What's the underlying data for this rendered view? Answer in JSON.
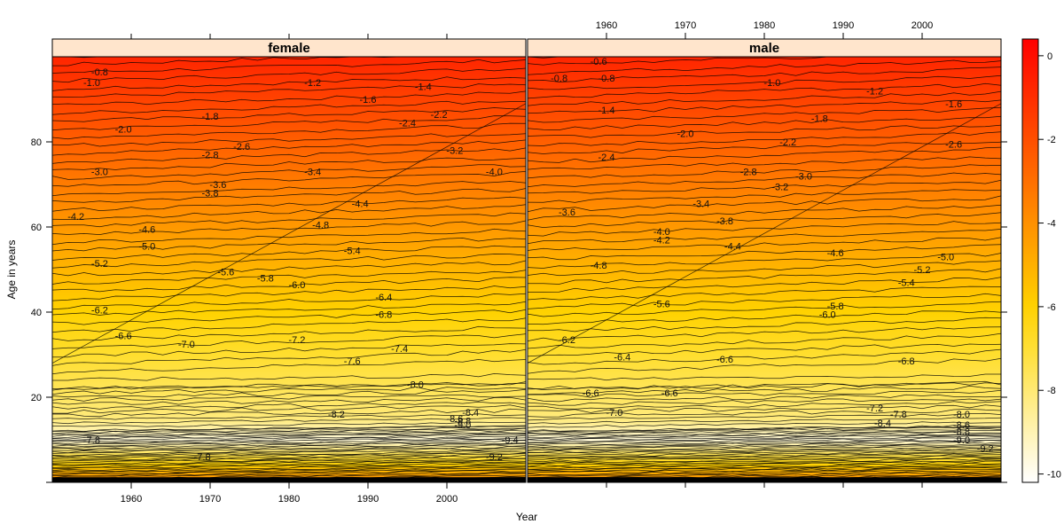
{
  "chart_data": {
    "type": "contour",
    "xlabel": "Year",
    "ylabel": "Age in years",
    "xlim": [
      1950,
      2010
    ],
    "ylim": [
      0,
      100
    ],
    "x_ticks": [
      1960,
      1970,
      1980,
      1990,
      2000
    ],
    "x_tick_labels": [
      "1960",
      "1970",
      "1980",
      "1990",
      "2000"
    ],
    "y_ticks": [
      0,
      20,
      40,
      60,
      80
    ],
    "y_tick_labels": [
      "",
      "20",
      "40",
      "60",
      "80"
    ],
    "colorbar": {
      "range": [
        -10.2,
        0.4
      ],
      "ticks": [
        0,
        -2,
        -4,
        -6,
        -8,
        -10
      ],
      "tick_labels": [
        "0",
        "-2",
        "-4",
        "-6",
        "-8",
        "-10"
      ],
      "high_color": "#ff0000",
      "mid_color": "#ffd700",
      "low_color": "#ffffff"
    },
    "panels": [
      {
        "name": "female",
        "contour_labels": [
          {
            "text": "-0.8",
            "year": 1956,
            "age": 96.5
          },
          {
            "text": "-1.0",
            "year": 1955,
            "age": 94
          },
          {
            "text": "-1.2",
            "year": 1983,
            "age": 94
          },
          {
            "text": "-1.4",
            "year": 1997,
            "age": 93
          },
          {
            "text": "-1.6",
            "year": 1990,
            "age": 90
          },
          {
            "text": "-1.8",
            "year": 1970,
            "age": 86
          },
          {
            "text": "-2.0",
            "year": 1959,
            "age": 83
          },
          {
            "text": "-2.2",
            "year": 1999,
            "age": 86.5
          },
          {
            "text": "-2.4",
            "year": 1995,
            "age": 84.5
          },
          {
            "text": "-2.6",
            "year": 1974,
            "age": 79
          },
          {
            "text": "-2.8",
            "year": 1970,
            "age": 77
          },
          {
            "text": "-3.0",
            "year": 1956,
            "age": 73
          },
          {
            "text": "-3.2",
            "year": 2001,
            "age": 78
          },
          {
            "text": "-3.4",
            "year": 1983,
            "age": 73
          },
          {
            "text": "-3.6",
            "year": 1971,
            "age": 70
          },
          {
            "text": "-3.8",
            "year": 1970,
            "age": 68
          },
          {
            "text": "-4.0",
            "year": 2006,
            "age": 73
          },
          {
            "text": "-4.2",
            "year": 1953,
            "age": 62.5
          },
          {
            "text": "-4.4",
            "year": 1989,
            "age": 65.5
          },
          {
            "text": "-4.6",
            "year": 1962,
            "age": 59.5
          },
          {
            "text": "-4.8",
            "year": 1984,
            "age": 60.5
          },
          {
            "text": "-5.0",
            "year": 1962,
            "age": 55.5
          },
          {
            "text": "-5.2",
            "year": 1956,
            "age": 51.5
          },
          {
            "text": "-5.4",
            "year": 1988,
            "age": 54.5
          },
          {
            "text": "-5.6",
            "year": 1972,
            "age": 49.5
          },
          {
            "text": "-5.8",
            "year": 1977,
            "age": 48
          },
          {
            "text": "-6.0",
            "year": 1981,
            "age": 46.5
          },
          {
            "text": "-6.2",
            "year": 1956,
            "age": 40.5
          },
          {
            "text": "-6.4",
            "year": 1992,
            "age": 43.5
          },
          {
            "text": "-6.6",
            "year": 1959,
            "age": 34.5
          },
          {
            "text": "-6.8",
            "year": 1992,
            "age": 39.5
          },
          {
            "text": "-7.0",
            "year": 1967,
            "age": 32.5
          },
          {
            "text": "-7.2",
            "year": 1981,
            "age": 33.5
          },
          {
            "text": "-7.4",
            "year": 1994,
            "age": 31.5
          },
          {
            "text": "-7.6",
            "year": 1988,
            "age": 28.5
          },
          {
            "text": "-7.8",
            "year": 1969,
            "age": 6
          },
          {
            "text": "-8.0",
            "year": 1996,
            "age": 23
          },
          {
            "text": "-8.2",
            "year": 1986,
            "age": 16
          },
          {
            "text": "-8.4",
            "year": 2003,
            "age": 16.5
          },
          {
            "text": "-8.6",
            "year": 2001,
            "age": 15
          },
          {
            "text": "-8.8",
            "year": 2002,
            "age": 14.5
          },
          {
            "text": "-9.0",
            "year": 2002,
            "age": 13.5
          },
          {
            "text": "-9.2",
            "year": 2006,
            "age": 6
          },
          {
            "text": "-9.4",
            "year": 2008,
            "age": 10
          },
          {
            "text": "-7.8",
            "year": 1955,
            "age": 10
          }
        ]
      },
      {
        "name": "male",
        "contour_labels": [
          {
            "text": "-0.6",
            "year": 1959,
            "age": 99
          },
          {
            "text": "-0.8",
            "year": 1954,
            "age": 95
          },
          {
            "text": "-0.8",
            "year": 1960,
            "age": 95
          },
          {
            "text": "-1.0",
            "year": 1981,
            "age": 94
          },
          {
            "text": "-1.2",
            "year": 1994,
            "age": 92
          },
          {
            "text": "-1.4",
            "year": 1960,
            "age": 87.5
          },
          {
            "text": "-1.6",
            "year": 2004,
            "age": 89
          },
          {
            "text": "-1.8",
            "year": 1987,
            "age": 85.5
          },
          {
            "text": "-2.0",
            "year": 1970,
            "age": 82
          },
          {
            "text": "-2.2",
            "year": 1983,
            "age": 80
          },
          {
            "text": "-2.4",
            "year": 1960,
            "age": 76.5
          },
          {
            "text": "-2.6",
            "year": 2004,
            "age": 79.5
          },
          {
            "text": "-2.8",
            "year": 1978,
            "age": 73
          },
          {
            "text": "-3.0",
            "year": 1985,
            "age": 72
          },
          {
            "text": "-3.2",
            "year": 1982,
            "age": 69.5
          },
          {
            "text": "-3.4",
            "year": 1972,
            "age": 65.5
          },
          {
            "text": "-3.6",
            "year": 1955,
            "age": 63.5
          },
          {
            "text": "-3.8",
            "year": 1975,
            "age": 61.5
          },
          {
            "text": "-4.0",
            "year": 1967,
            "age": 59
          },
          {
            "text": "-4.2",
            "year": 1967,
            "age": 57
          },
          {
            "text": "-4.4",
            "year": 1976,
            "age": 55.5
          },
          {
            "text": "-4.6",
            "year": 1989,
            "age": 54
          },
          {
            "text": "-4.8",
            "year": 1959,
            "age": 51
          },
          {
            "text": "-5.0",
            "year": 2003,
            "age": 53
          },
          {
            "text": "-5.2",
            "year": 2000,
            "age": 50
          },
          {
            "text": "-5.4",
            "year": 1998,
            "age": 47
          },
          {
            "text": "-5.6",
            "year": 1967,
            "age": 42
          },
          {
            "text": "-5.8",
            "year": 1989,
            "age": 41.5
          },
          {
            "text": "-6.0",
            "year": 1988,
            "age": 39.5
          },
          {
            "text": "-6.2",
            "year": 1955,
            "age": 33.5
          },
          {
            "text": "-6.4",
            "year": 1962,
            "age": 29.5
          },
          {
            "text": "-6.6",
            "year": 1975,
            "age": 29
          },
          {
            "text": "-6.8",
            "year": 1998,
            "age": 28.5
          },
          {
            "text": "-6.6",
            "year": 1958,
            "age": 21
          },
          {
            "text": "-6.6",
            "year": 1968,
            "age": 21
          },
          {
            "text": "-7.0",
            "year": 1961,
            "age": 16.5
          },
          {
            "text": "-7.2",
            "year": 1994,
            "age": 17.5
          },
          {
            "text": "-7.8",
            "year": 1997,
            "age": 16
          },
          {
            "text": "-8.0",
            "year": 2005,
            "age": 16
          },
          {
            "text": "-8.4",
            "year": 1995,
            "age": 14
          },
          {
            "text": "-8.6",
            "year": 2005,
            "age": 13.5
          },
          {
            "text": "-8.8",
            "year": 2005,
            "age": 12
          },
          {
            "text": "-9.0",
            "year": 2005,
            "age": 10
          },
          {
            "text": "-9.2",
            "year": 2008,
            "age": 8
          }
        ]
      }
    ]
  }
}
